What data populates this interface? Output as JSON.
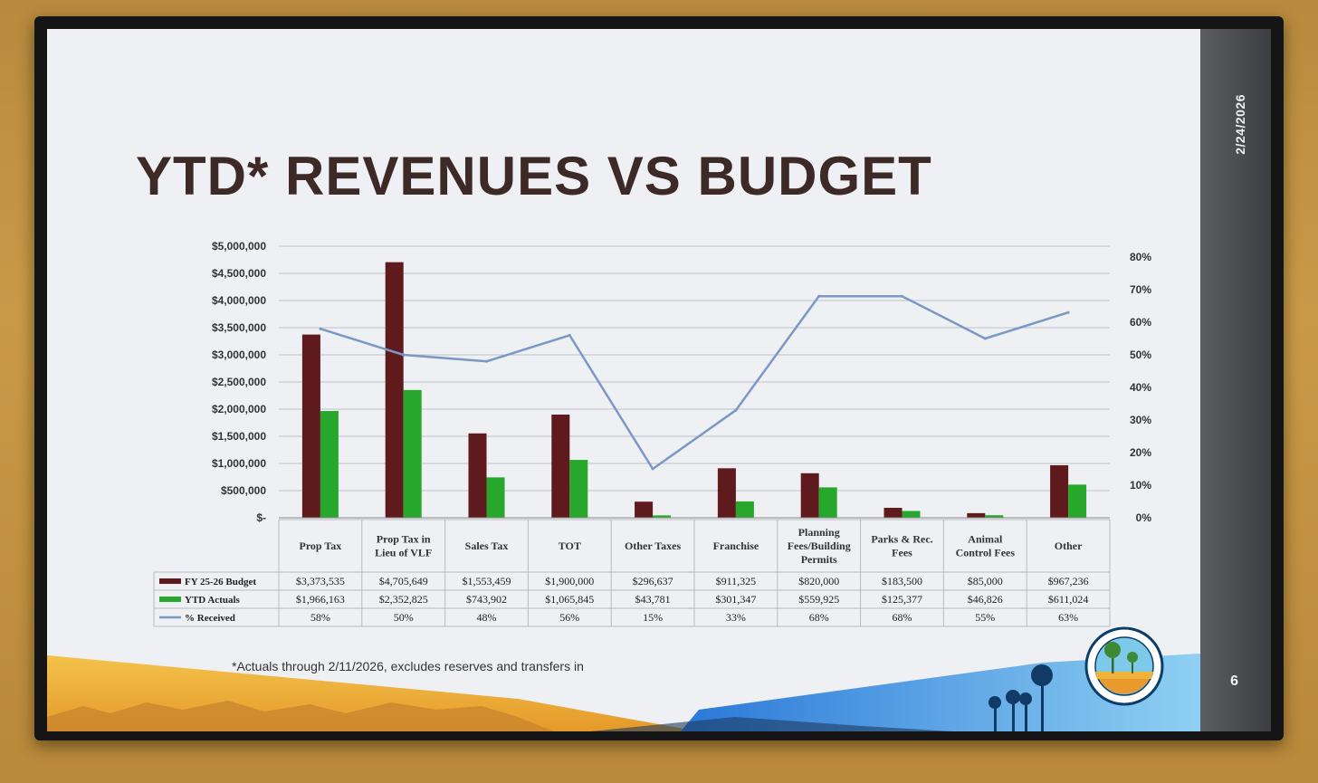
{
  "slide": {
    "title": "YTD* REVENUES VS BUDGET",
    "date": "2/24/2026",
    "page_number": "6",
    "footnote": "*Actuals through 2/11/2026, excludes reserves and transfers in"
  },
  "colors": {
    "budget": "#5e1a1c",
    "actuals": "#27a82c",
    "received_line": "#7b98c4",
    "title": "#3d2a26"
  },
  "chart_data": {
    "type": "bar",
    "title": "YTD* REVENUES VS BUDGET",
    "categories": [
      [
        "Prop Tax"
      ],
      [
        "Prop Tax in",
        "Lieu of VLF"
      ],
      [
        "Sales Tax"
      ],
      [
        "TOT"
      ],
      [
        "Other Taxes"
      ],
      [
        "Franchise"
      ],
      [
        "Planning",
        "Fees/Building",
        "Permits"
      ],
      [
        "Parks & Rec.",
        "Fees"
      ],
      [
        "Animal",
        "Control Fees"
      ],
      [
        "Other"
      ]
    ],
    "series": [
      {
        "name": "FY 25-26 Budget",
        "type": "bar",
        "values": [
          3373535,
          4705649,
          1553459,
          1900000,
          296637,
          911325,
          820000,
          183500,
          85000,
          967236
        ],
        "labels": [
          "$3,373,535",
          "$4,705,649",
          "$1,553,459",
          "$1,900,000",
          "$296,637",
          "$911,325",
          "$820,000",
          "$183,500",
          "$85,000",
          "$967,236"
        ]
      },
      {
        "name": "YTD Actuals",
        "type": "bar",
        "values": [
          1966163,
          2352825,
          743902,
          1065845,
          43781,
          301347,
          559925,
          125377,
          46826,
          611024
        ],
        "labels": [
          "$1,966,163",
          "$2,352,825",
          "$743,902",
          "$1,065,845",
          "$43,781",
          "$301,347",
          "$559,925",
          "$125,377",
          "$46,826",
          "$611,024"
        ]
      },
      {
        "name": "% Received",
        "type": "line",
        "axis": "right",
        "values": [
          58,
          50,
          48,
          56,
          15,
          33,
          68,
          68,
          55,
          63
        ],
        "labels": [
          "58%",
          "50%",
          "48%",
          "56%",
          "15%",
          "33%",
          "68%",
          "68%",
          "55%",
          "63%"
        ]
      }
    ],
    "y_left": {
      "range": [
        0,
        5000000
      ],
      "ticks": [
        "$-",
        "$500,000",
        "$1,000,000",
        "$1,500,000",
        "$2,000,000",
        "$2,500,000",
        "$3,000,000",
        "$3,500,000",
        "$4,000,000",
        "$4,500,000",
        "$5,000,000"
      ]
    },
    "y_right": {
      "range": [
        0,
        80
      ],
      "ticks": [
        "0%",
        "10%",
        "20%",
        "30%",
        "40%",
        "50%",
        "60%",
        "70%",
        "80%"
      ]
    },
    "grid": true,
    "legend": "data-table"
  }
}
